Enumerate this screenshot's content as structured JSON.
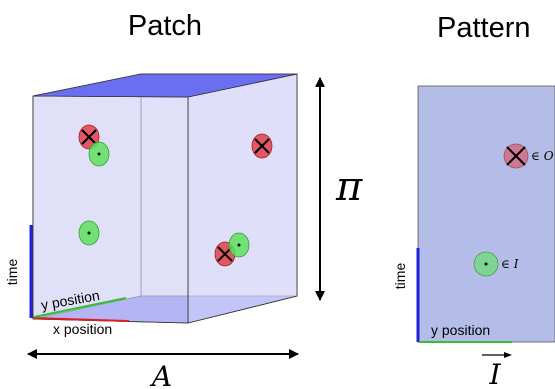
{
  "left_panel": {
    "title": "Patch",
    "axes": {
      "time": "time",
      "x": "x position",
      "y": "y position"
    },
    "height_symbol": "π",
    "width_symbol": "A"
  },
  "right_panel": {
    "title": "Pattern",
    "axes": {
      "time": "time",
      "y": "y position"
    },
    "width_symbol": "I",
    "membership_o": "∈ O",
    "membership_i": "∈ I"
  },
  "colors": {
    "box_face": "#dcdcf8",
    "box_top": "#6a6ef0",
    "pattern_face": "#b3bde8",
    "red_marker": "#e0404c",
    "green_marker": "#5ee05e",
    "time_axis": "#2020e0",
    "x_axis": "#e02020",
    "y_axis": "#30c030"
  }
}
